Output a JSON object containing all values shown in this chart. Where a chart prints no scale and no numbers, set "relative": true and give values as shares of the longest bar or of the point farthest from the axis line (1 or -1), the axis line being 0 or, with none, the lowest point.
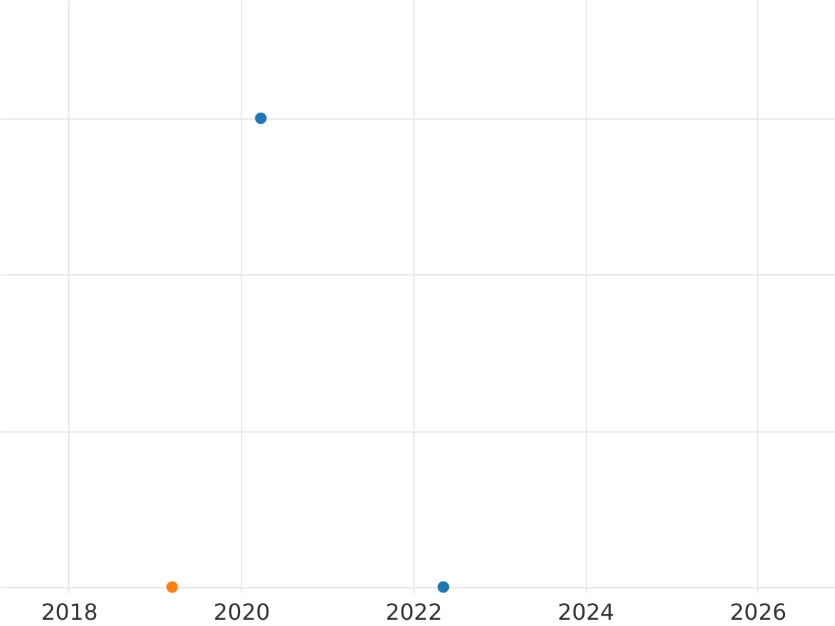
{
  "chart_data": {
    "type": "scatter",
    "relative": true,
    "grid": true,
    "marker": "circle",
    "xlim": [
      2017.2,
      2026.9
    ],
    "xticks": [
      2018,
      2020,
      2022,
      2024,
      2026
    ],
    "series": [
      {
        "color": "#1f77b4",
        "x": [
          2020.23,
          2022.35
        ],
        "values": [
          1,
          0
        ]
      },
      {
        "color": "#ff7f0e",
        "x": [
          2019.2
        ],
        "values": [
          0
        ]
      }
    ]
  }
}
